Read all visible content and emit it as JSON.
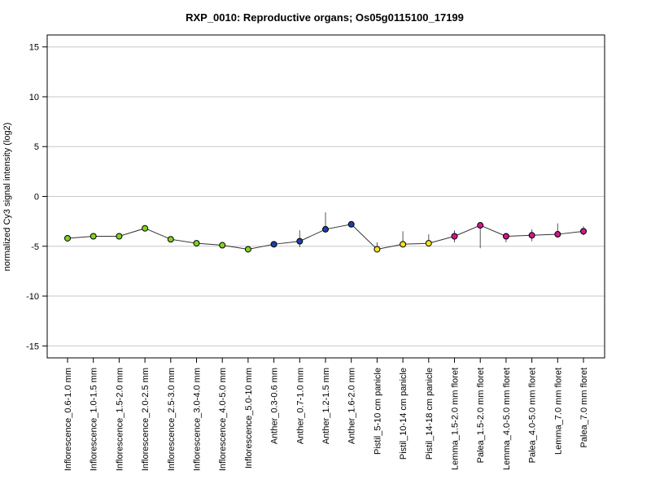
{
  "chart_data": {
    "type": "line",
    "title": "RXP_0010: Reproductive organs; Os05g0115100_17199",
    "ylabel": "normalized Cy3 signal intensity (log2)",
    "xlabel": "",
    "ylim": [
      -16.2,
      16.2
    ],
    "yticks": [
      -15,
      -10,
      -5,
      0,
      5,
      10,
      15
    ],
    "grid": true,
    "categories": [
      "Inflorescence_0.6-1.0 mm",
      "Inflorescence_1.0-1.5 mm",
      "Inflorescence_1.5-2.0 mm",
      "Inflorescence_2.0-2.5 mm",
      "Inflorescence_2.5-3.0 mm",
      "Inflorescence_3.0-4.0 mm",
      "Inflorescence_4.0-5.0 mm",
      "Inflorescence_5.0-10 mm",
      "Anther_0.3-0.6 mm",
      "Anther_0.7-1.0 mm",
      "Anther_1.2-1.5 mm",
      "Anther_1.6-2.0 mm",
      "Pistil_5-10 cm panicle",
      "Pistil_10-14 cm panicle",
      "Pistil_14-18 cm panicle",
      "Lemma_1.5-2.0 mm floret",
      "Palea_1.5-2.0 mm floret",
      "Lemma_4.0-5.0 mm floret",
      "Palea_4.0-5.0 mm floret",
      "Lemma_7.0 mm floret",
      "Palea_7.0 mm floret"
    ],
    "values": [
      -4.2,
      -4.0,
      -4.0,
      -3.2,
      -4.3,
      -4.7,
      -4.9,
      -5.3,
      -4.8,
      -4.5,
      -3.3,
      -2.8,
      -5.3,
      -4.8,
      -4.7,
      -4.0,
      -2.9,
      -4.0,
      -3.9,
      -3.8,
      -3.5
    ],
    "error_low": [
      -4.2,
      -4.0,
      -4.0,
      -3.2,
      -4.3,
      -4.7,
      -4.9,
      -5.3,
      -4.8,
      -5.1,
      -3.3,
      -2.8,
      -5.5,
      -5.0,
      -4.9,
      -4.6,
      -5.2,
      -4.6,
      -4.5,
      -4.1,
      -3.9
    ],
    "error_high": [
      -4.2,
      -4.0,
      -4.0,
      -3.2,
      -4.3,
      -4.7,
      -4.9,
      -5.3,
      -4.8,
      -3.4,
      -1.6,
      -2.8,
      -4.6,
      -3.5,
      -3.8,
      -3.4,
      -2.8,
      -3.8,
      -3.3,
      -2.7,
      -3.0
    ],
    "point_colors": [
      "#7ed321",
      "#7ed321",
      "#7ed321",
      "#7ed321",
      "#7ed321",
      "#7ed321",
      "#7ed321",
      "#7ed321",
      "#1f3fa8",
      "#1f3fa8",
      "#1f3fa8",
      "#1f3fa8",
      "#f5e11a",
      "#f5e11a",
      "#f5e11a",
      "#d3168a",
      "#d3168a",
      "#d3168a",
      "#d3168a",
      "#d3168a",
      "#d3168a"
    ],
    "line_color": "#333333",
    "grid_color": "#c8c8c8"
  }
}
